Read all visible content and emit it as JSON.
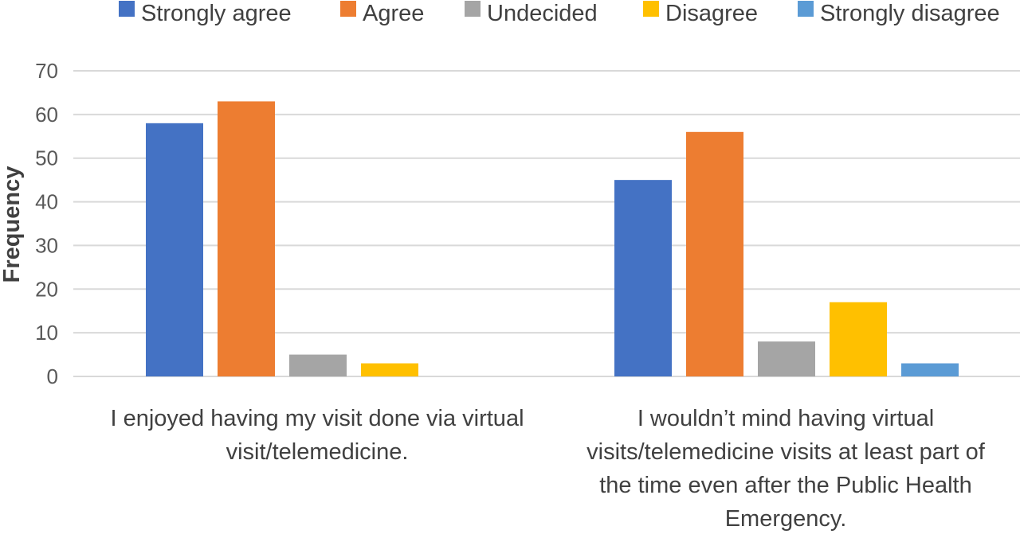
{
  "chart_data": {
    "type": "bar",
    "title": "",
    "xlabel": "",
    "ylabel": "Frequency",
    "ylim": [
      0,
      70
    ],
    "yticks": [
      0,
      10,
      20,
      30,
      40,
      50,
      60,
      70
    ],
    "grid": true,
    "legend_position": "top",
    "categories": [
      [
        "I enjoyed having my visit done via virtual",
        "visit/telemedicine."
      ],
      [
        "I wouldn’t mind having virtual",
        "visits/telemedicine visits at least part of",
        "the time even after the Public Health",
        "Emergency."
      ]
    ],
    "series": [
      {
        "name": "Strongly agree",
        "color": "#4472C4",
        "values": [
          58,
          45
        ]
      },
      {
        "name": "Agree",
        "color": "#ED7D31",
        "values": [
          63,
          56
        ]
      },
      {
        "name": "Undecided",
        "color": "#A5A5A5",
        "values": [
          5,
          8
        ]
      },
      {
        "name": "Disagree",
        "color": "#FFC000",
        "values": [
          3,
          17
        ]
      },
      {
        "name": "Strongly disagree",
        "color": "#5B9BD5",
        "values": [
          0,
          3
        ]
      }
    ]
  }
}
